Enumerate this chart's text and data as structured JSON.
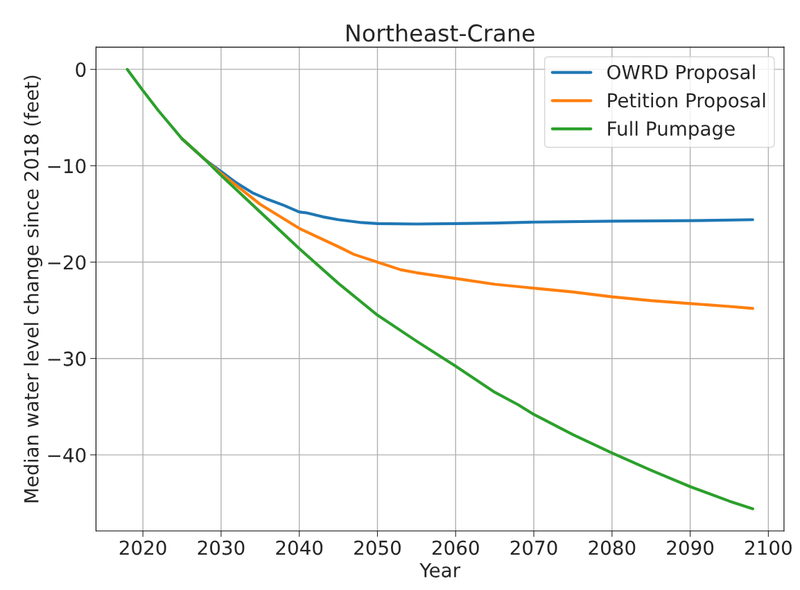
{
  "chart_data": {
    "type": "line",
    "title": "Northeast-Crane",
    "xlabel": "Year",
    "ylabel": "Median water level change since 2018 (feet)",
    "xlim": [
      2014,
      2102
    ],
    "xticks": [
      2020,
      2030,
      2040,
      2050,
      2060,
      2070,
      2080,
      2090,
      2100
    ],
    "ylim": [
      -47.9,
      2.3
    ],
    "yticks": [
      0,
      -10,
      -20,
      -30,
      -40
    ],
    "grid": true,
    "legend": "top right",
    "line_style": "solid",
    "marker": "none",
    "series": [
      {
        "name": "OWRD Proposal",
        "color": "#1f77b4",
        "x": [
          2025,
          2028,
          2030,
          2032,
          2034,
          2036,
          2038,
          2040,
          2041,
          2043,
          2045,
          2048,
          2050,
          2055,
          2060,
          2065,
          2070,
          2080,
          2090,
          2098
        ],
        "values": [
          -7.2,
          -9.4,
          -10.6,
          -11.8,
          -12.8,
          -13.5,
          -14.1,
          -14.8,
          -14.9,
          -15.3,
          -15.6,
          -15.9,
          -16.0,
          -16.05,
          -16.0,
          -15.95,
          -15.85,
          -15.75,
          -15.7,
          -15.6
        ]
      },
      {
        "name": "Petition Proposal",
        "color": "#ff7f0e",
        "x": [
          2025,
          2028,
          2030,
          2035,
          2040,
          2045,
          2047,
          2050,
          2053,
          2055,
          2060,
          2065,
          2070,
          2075,
          2080,
          2085,
          2090,
          2095,
          2098
        ],
        "values": [
          -7.2,
          -9.4,
          -10.8,
          -14.0,
          -16.5,
          -18.4,
          -19.2,
          -20.0,
          -20.8,
          -21.1,
          -21.7,
          -22.3,
          -22.7,
          -23.1,
          -23.6,
          -24.0,
          -24.3,
          -24.6,
          -24.8
        ]
      },
      {
        "name": "Full Pumpage",
        "color": "#2ca02c",
        "x": [
          2018,
          2020,
          2022,
          2025,
          2028,
          2030,
          2035,
          2040,
          2045,
          2050,
          2055,
          2060,
          2065,
          2068,
          2070,
          2075,
          2080,
          2085,
          2090,
          2095,
          2098
        ],
        "values": [
          0,
          -2.2,
          -4.3,
          -7.2,
          -9.4,
          -11.0,
          -14.8,
          -18.6,
          -22.2,
          -25.5,
          -28.2,
          -30.8,
          -33.5,
          -34.8,
          -35.8,
          -37.9,
          -39.8,
          -41.6,
          -43.3,
          -44.8,
          -45.6
        ]
      }
    ]
  }
}
